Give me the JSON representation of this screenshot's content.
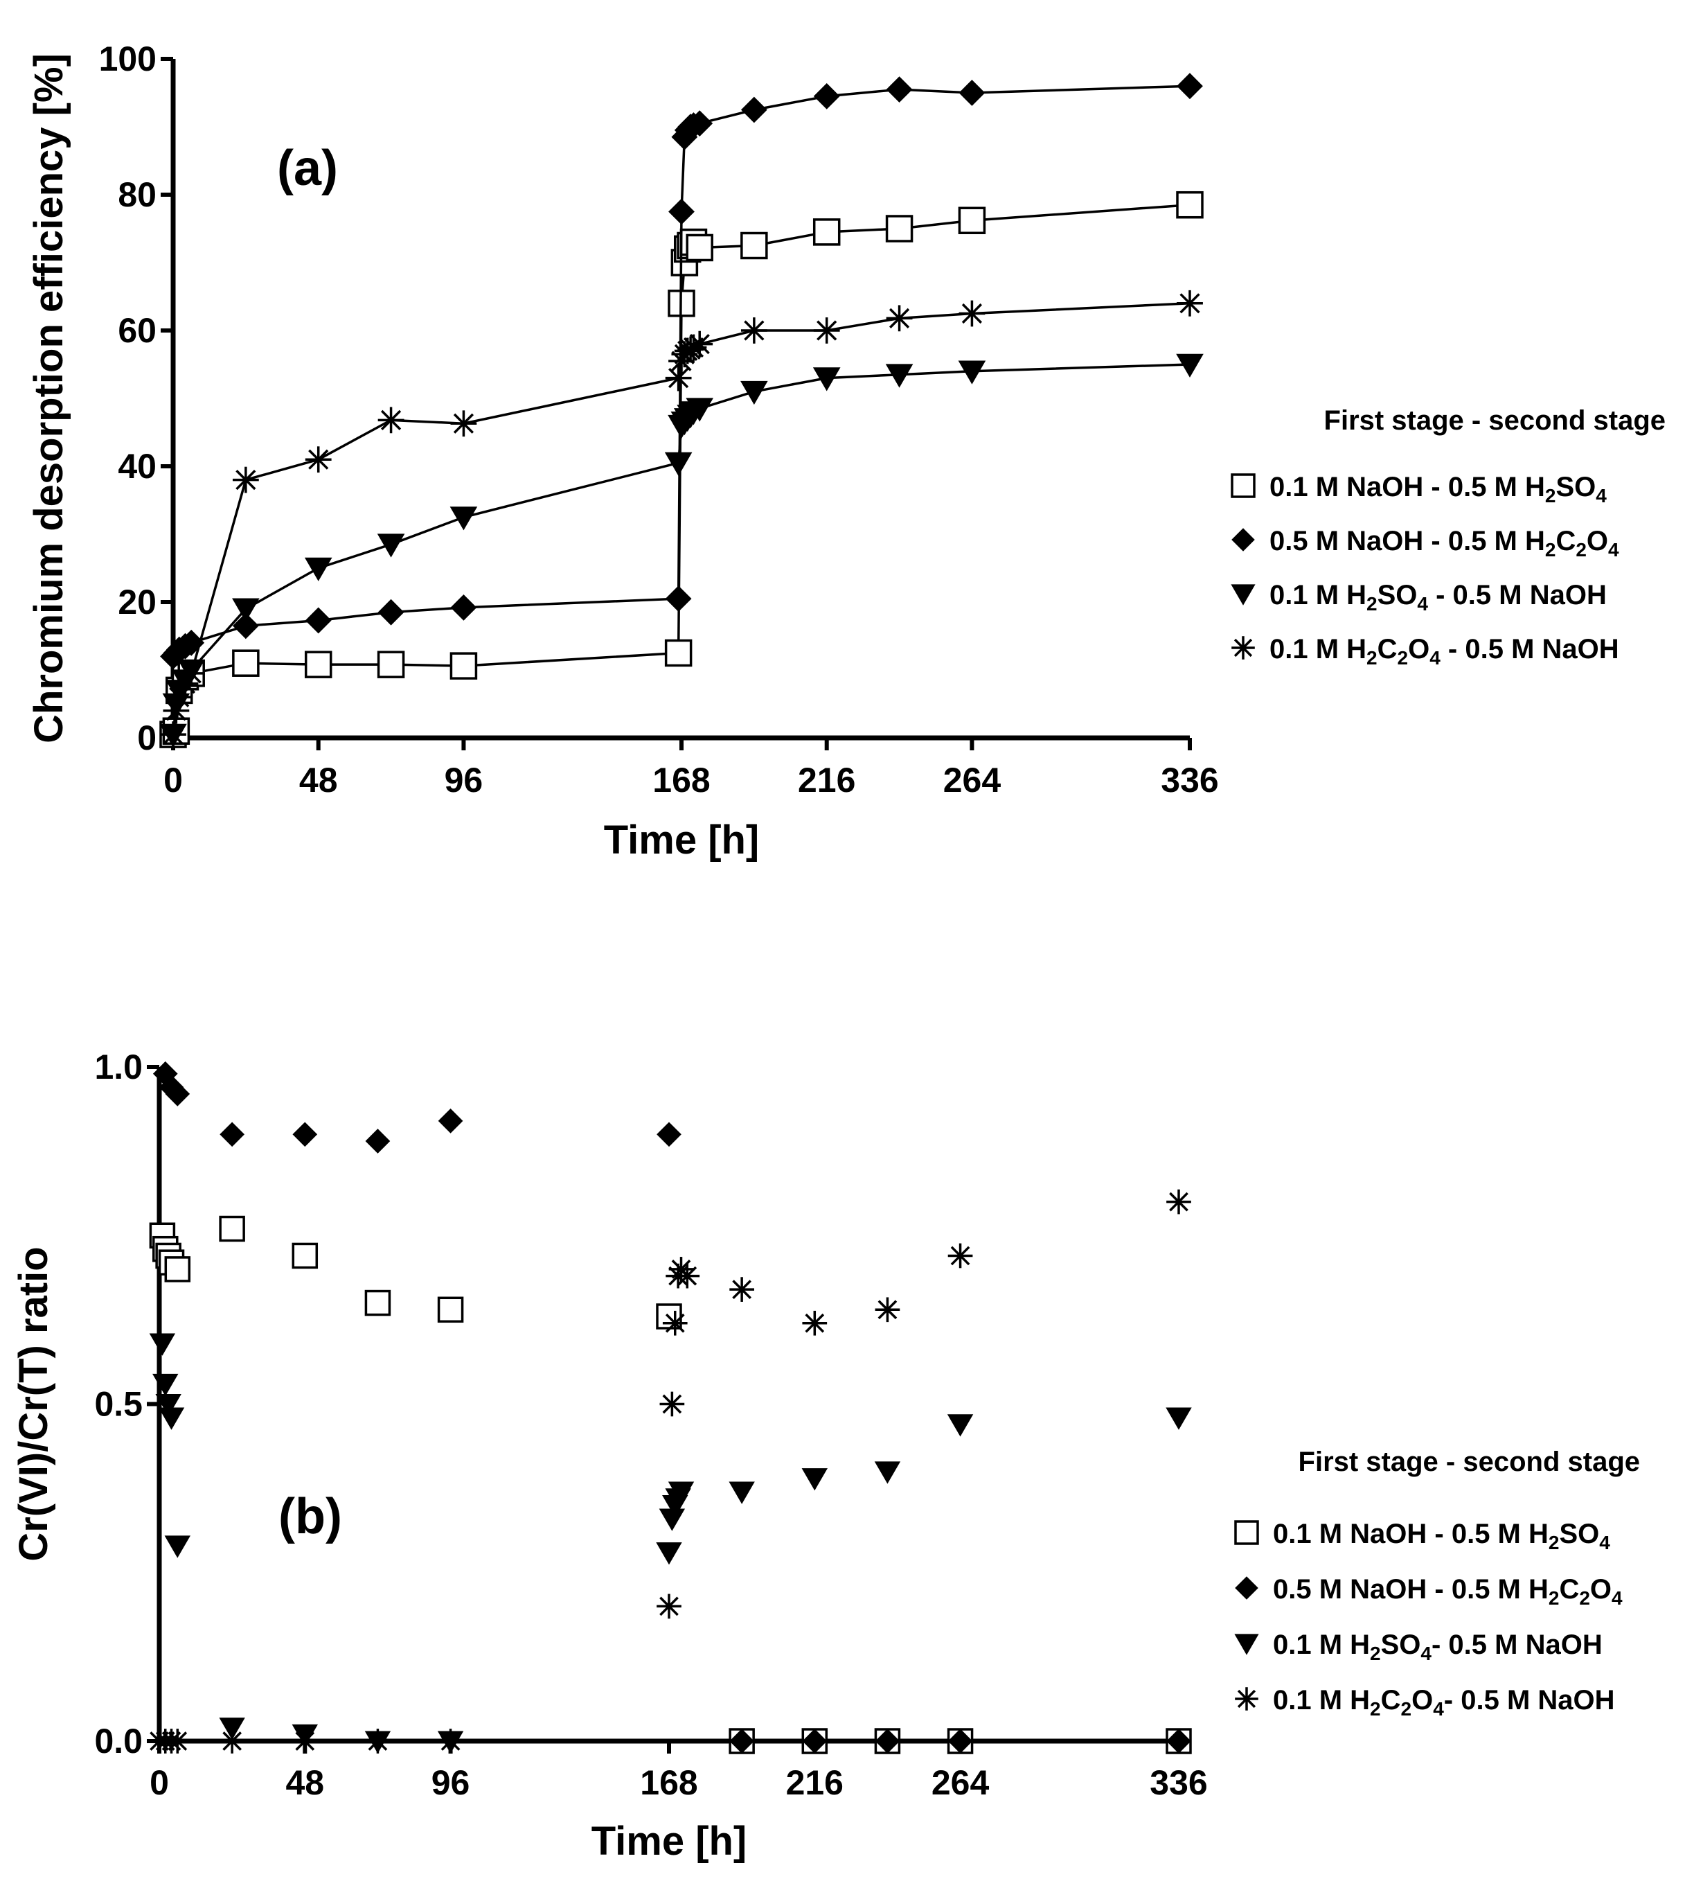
{
  "chart_data": [
    {
      "id": "a",
      "type": "line",
      "panel_label": "(a)",
      "xlabel": "Time [h]",
      "ylabel": "Chromium desorption efficiency [%]",
      "xlim": [
        0,
        336
      ],
      "ylim": [
        0,
        100
      ],
      "xticks": [
        0,
        48,
        96,
        168,
        216,
        264,
        336
      ],
      "yticks": [
        0,
        20,
        40,
        60,
        80,
        100
      ],
      "legend_title": "First stage - second stage",
      "legend_position": "right",
      "series": [
        {
          "name": "0.1 M NaOH - 0.5 M H2SO4",
          "label_parts": [
            [
              "0.1 M NaOH - 0.5 M H",
              false
            ],
            [
              "2",
              true
            ],
            [
              "SO",
              false
            ],
            [
              "4",
              true
            ]
          ],
          "marker": "square-open",
          "x": [
            0,
            1,
            2,
            4,
            6,
            24,
            48,
            72,
            96,
            167,
            168,
            169,
            170,
            171,
            172,
            174,
            192,
            216,
            240,
            264,
            336
          ],
          "y": [
            0.5,
            1,
            7,
            9,
            9.5,
            11,
            10.8,
            10.8,
            10.6,
            12.5,
            64,
            70,
            72,
            72.5,
            73,
            72.2,
            72.5,
            74.5,
            75,
            76.2,
            78.5
          ]
        },
        {
          "name": "0.5 M NaOH - 0.5 M H2C2O4",
          "label_parts": [
            [
              "0.5 M NaOH - 0.5 M H",
              false
            ],
            [
              "2",
              true
            ],
            [
              "C",
              false
            ],
            [
              "2",
              true
            ],
            [
              "O",
              false
            ],
            [
              "4",
              true
            ]
          ],
          "marker": "diamond-filled",
          "x": [
            0,
            1,
            2,
            4,
            6,
            24,
            48,
            72,
            96,
            167,
            168,
            169,
            170,
            171,
            172,
            174,
            192,
            216,
            240,
            264,
            336
          ],
          "y": [
            12,
            12.5,
            13,
            13.5,
            14,
            16.5,
            17.3,
            18.5,
            19.2,
            20.5,
            77.5,
            88.5,
            89.5,
            90,
            90.2,
            90.5,
            92.5,
            94.5,
            95.5,
            95,
            96
          ]
        },
        {
          "name": "0.1 M H2SO4 - 0.5 M NaOH",
          "label_parts": [
            [
              "0.1 M H",
              false
            ],
            [
              "2",
              true
            ],
            [
              "SO",
              false
            ],
            [
              "4",
              true
            ],
            [
              " - 0.5 M NaOH",
              false
            ]
          ],
          "marker": "triangle-down-filled",
          "x": [
            0,
            1,
            2,
            4,
            6,
            24,
            48,
            72,
            96,
            167,
            168,
            169,
            170,
            171,
            172,
            174,
            192,
            216,
            240,
            264,
            336
          ],
          "y": [
            0.5,
            5,
            7,
            8.5,
            10,
            19,
            25,
            28.5,
            32.5,
            40.5,
            46,
            46.5,
            47,
            47.5,
            48,
            48.5,
            51,
            53,
            53.5,
            54,
            55
          ]
        },
        {
          "name": "0.1 M H2C2O4 - 0.5 M NaOH",
          "label_parts": [
            [
              "0.1 M H",
              false
            ],
            [
              "2",
              true
            ],
            [
              "C",
              false
            ],
            [
              "2",
              true
            ],
            [
              "O",
              false
            ],
            [
              "4",
              true
            ],
            [
              " - 0.5 M NaOH",
              false
            ]
          ],
          "marker": "asterisk",
          "x": [
            0,
            1,
            2,
            4,
            6,
            24,
            48,
            72,
            96,
            167,
            168,
            169,
            170,
            171,
            172,
            174,
            192,
            216,
            240,
            264,
            336
          ],
          "y": [
            0.5,
            4,
            6,
            8,
            9.5,
            38,
            41,
            46.8,
            46.3,
            53,
            55.5,
            56.5,
            57,
            57.2,
            57.5,
            58,
            60,
            60,
            61.8,
            62.5,
            64
          ]
        }
      ]
    },
    {
      "id": "b",
      "type": "scatter",
      "panel_label": "(b)",
      "xlabel": "Time [h]",
      "ylabel": "Cr(VI)/Cr(T) ratio",
      "xlim": [
        0,
        336
      ],
      "ylim": [
        0,
        1.0
      ],
      "xticks": [
        0,
        48,
        96,
        168,
        216,
        264,
        336
      ],
      "yticks": [
        0.0,
        0.5,
        1.0
      ],
      "ytick_labels": [
        "0.0",
        "0.5",
        "1.0"
      ],
      "legend_title": "First stage - second stage",
      "legend_position": "right",
      "series": [
        {
          "name": "0.1 M NaOH - 0.5 M H2SO4",
          "label_parts": [
            [
              "0.1 M NaOH - 0.5 M H",
              false
            ],
            [
              "2",
              true
            ],
            [
              "SO",
              false
            ],
            [
              "4",
              true
            ]
          ],
          "marker": "square-open",
          "x": [
            1,
            2,
            3,
            4,
            6,
            24,
            48,
            72,
            96,
            168,
            192,
            216,
            240,
            264,
            336
          ],
          "y": [
            0.75,
            0.73,
            0.72,
            0.71,
            0.7,
            0.76,
            0.72,
            0.65,
            0.64,
            0.63,
            0.0,
            0.0,
            0.0,
            0.0,
            0.0
          ]
        },
        {
          "name": "0.5 M NaOH - 0.5 M H2C2O4",
          "label_parts": [
            [
              "0.5 M NaOH - 0.5 M H",
              false
            ],
            [
              "2",
              true
            ],
            [
              "C",
              false
            ],
            [
              "2",
              true
            ],
            [
              "O",
              false
            ],
            [
              "4",
              true
            ]
          ],
          "marker": "diamond-filled",
          "x": [
            2,
            4,
            6,
            24,
            48,
            72,
            96,
            168,
            192,
            216,
            240,
            264,
            336
          ],
          "y": [
            0.99,
            0.97,
            0.96,
            0.9,
            0.9,
            0.89,
            0.92,
            0.9,
            0.0,
            0.0,
            0.0,
            0.0,
            0.0
          ]
        },
        {
          "name": "0.1 M H2SO4- 0.5 M NaOH",
          "label_parts": [
            [
              "0.1 M H",
              false
            ],
            [
              "2",
              true
            ],
            [
              "SO",
              false
            ],
            [
              "4",
              true
            ],
            [
              "- 0.5 M NaOH",
              false
            ]
          ],
          "marker": "triangle-down-filled",
          "x": [
            1,
            2,
            3,
            4,
            6,
            24,
            48,
            72,
            96,
            168,
            169,
            170,
            171,
            172,
            192,
            216,
            240,
            264,
            336
          ],
          "y": [
            0.59,
            0.53,
            0.5,
            0.48,
            0.29,
            0.02,
            0.01,
            0.0,
            0.0,
            0.28,
            0.33,
            0.35,
            0.36,
            0.37,
            0.37,
            0.39,
            0.4,
            0.47,
            0.48
          ]
        },
        {
          "name": "0.1 M H2C2O4- 0.5 M NaOH",
          "label_parts": [
            [
              "0.1 M H",
              false
            ],
            [
              "2",
              true
            ],
            [
              "C",
              false
            ],
            [
              "2",
              true
            ],
            [
              "O",
              false
            ],
            [
              "4",
              true
            ],
            [
              "- 0.5 M NaOH",
              false
            ]
          ],
          "marker": "asterisk",
          "x": [
            0,
            2,
            4,
            6,
            24,
            48,
            72,
            96,
            168,
            169,
            170,
            171,
            172,
            174,
            192,
            216,
            240,
            264,
            336
          ],
          "y": [
            0.0,
            0.0,
            0.0,
            0.0,
            0.0,
            0.0,
            0.0,
            0.0,
            0.2,
            0.5,
            0.62,
            0.69,
            0.7,
            0.69,
            0.67,
            0.62,
            0.64,
            0.72,
            0.8
          ]
        }
      ]
    }
  ]
}
